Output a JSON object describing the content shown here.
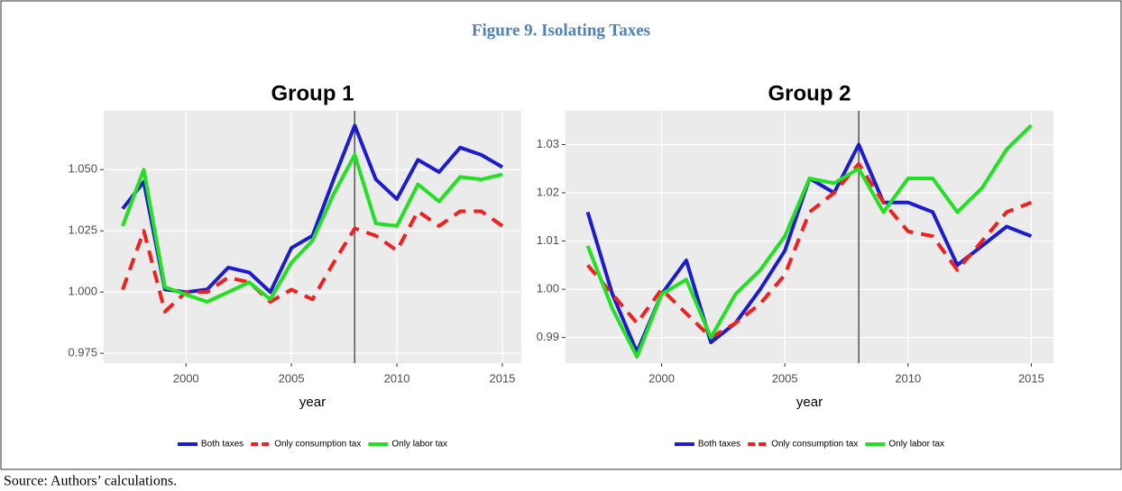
{
  "figure_title": "Figure 9. Isolating Taxes",
  "source": "Source: Authors’ calculations.",
  "chart_data": [
    {
      "type": "line",
      "title": "Group 1",
      "x_label": "year",
      "x": [
        1997,
        1998,
        1999,
        2000,
        2001,
        2002,
        2003,
        2004,
        2005,
        2006,
        2007,
        2008,
        2009,
        2010,
        2011,
        2012,
        2013,
        2014,
        2015
      ],
      "xlim": [
        1996.1,
        2015.9
      ],
      "xticks": [
        2000,
        2005,
        2010,
        2015
      ],
      "ylim": [
        0.971,
        1.074
      ],
      "yticks": [
        0.975,
        {
          "value": 1.0,
          "label": "1.000"
        },
        1.025,
        {
          "value": 1.05,
          "label": "1.050"
        }
      ],
      "grid": true,
      "legend": "bottom",
      "vline": 2008,
      "series": [
        {
          "name": "Both taxes",
          "color": "#1c1ccf",
          "linestyle": "solid",
          "values": [
            1.034,
            1.045,
            1.001,
            1.0,
            1.001,
            1.01,
            1.008,
            1.0,
            1.018,
            1.023,
            1.046,
            1.068,
            1.046,
            1.038,
            1.054,
            1.049,
            1.059,
            1.056,
            1.051
          ]
        },
        {
          "name": "Only consumption tax",
          "color": "#f02020",
          "linestyle": "dashed",
          "values": [
            1.001,
            1.025,
            0.992,
            1.0,
            1.0,
            1.006,
            1.004,
            0.996,
            1.001,
            0.997,
            1.012,
            1.026,
            1.023,
            1.017,
            1.033,
            1.027,
            1.033,
            1.033,
            1.027
          ]
        },
        {
          "name": "Only labor tax",
          "color": "#22e022",
          "linestyle": "solid",
          "values": [
            1.027,
            1.05,
            1.002,
            0.999,
            0.996,
            1.0,
            1.004,
            0.997,
            1.012,
            1.021,
            1.04,
            1.056,
            1.028,
            1.027,
            1.044,
            1.037,
            1.047,
            1.046,
            1.048
          ]
        }
      ]
    },
    {
      "type": "line",
      "title": "Group 2",
      "x_label": "year",
      "x": [
        1997,
        1998,
        1999,
        2000,
        2001,
        2002,
        2003,
        2004,
        2005,
        2006,
        2007,
        2008,
        2009,
        2010,
        2011,
        2012,
        2013,
        2014,
        2015
      ],
      "xlim": [
        1996.1,
        2015.9
      ],
      "xticks": [
        2000,
        2005,
        2010,
        2015
      ],
      "ylim": [
        0.9847,
        1.037
      ],
      "yticks": [
        0.99,
        {
          "value": 1.0,
          "label": "1.00"
        },
        1.01,
        1.02,
        1.03
      ],
      "grid": true,
      "legend": "bottom",
      "vline": 2008,
      "series": [
        {
          "name": "Both taxes",
          "color": "#1c1ccf",
          "linestyle": "solid",
          "values": [
            1.016,
            0.999,
            0.987,
            0.999,
            1.006,
            0.989,
            0.993,
            1.0,
            1.008,
            1.023,
            1.02,
            1.03,
            1.018,
            1.018,
            1.016,
            1.005,
            1.009,
            1.013,
            1.011
          ]
        },
        {
          "name": "Only consumption tax",
          "color": "#f02020",
          "linestyle": "dashed",
          "values": [
            1.005,
            0.999,
            0.993,
            1.0,
            0.995,
            0.99,
            0.993,
            0.997,
            1.003,
            1.016,
            1.02,
            1.026,
            1.018,
            1.012,
            1.011,
            1.004,
            1.01,
            1.016,
            1.018
          ]
        },
        {
          "name": "Only labor tax",
          "color": "#22e022",
          "linestyle": "solid",
          "values": [
            1.009,
            0.996,
            0.986,
            0.999,
            1.002,
            0.99,
            0.999,
            1.004,
            1.011,
            1.023,
            1.022,
            1.025,
            1.016,
            1.023,
            1.023,
            1.016,
            1.021,
            1.029,
            1.034
          ]
        }
      ]
    }
  ]
}
